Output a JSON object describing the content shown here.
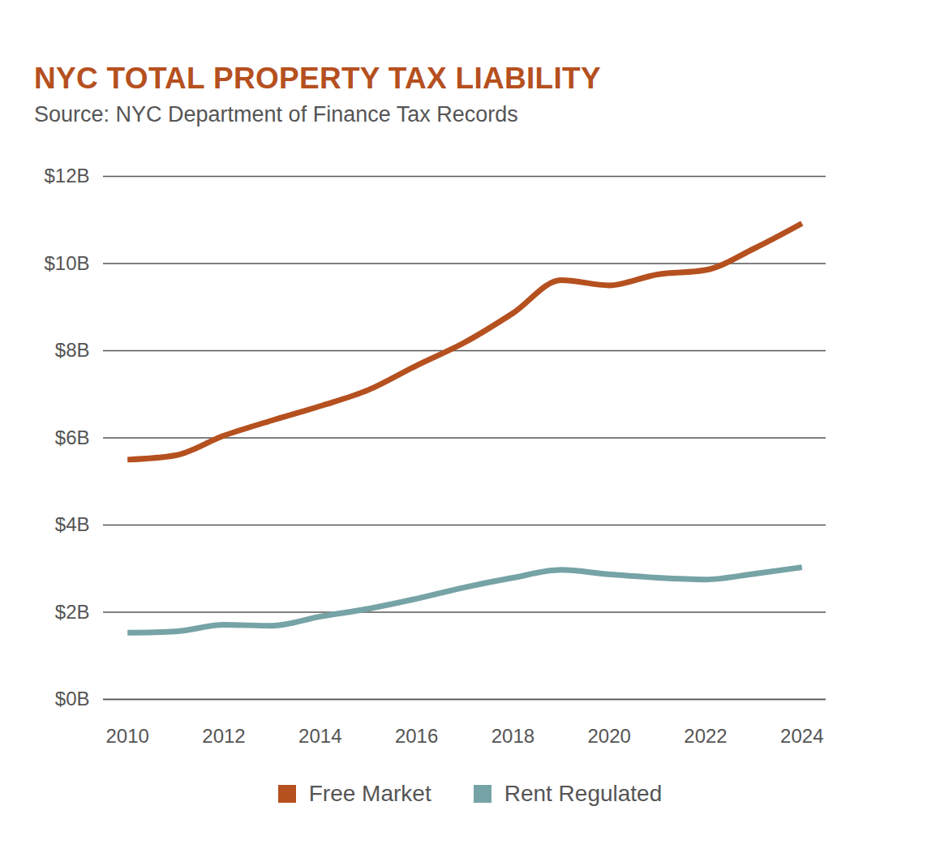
{
  "chart_data": {
    "type": "line",
    "title": "NYC TOTAL PROPERTY TAX LIABILITY",
    "subtitle": "Source: NYC Department of Finance Tax Records",
    "x": [
      2010,
      2011,
      2012,
      2013,
      2014,
      2015,
      2016,
      2017,
      2018,
      2019,
      2020,
      2021,
      2022,
      2023,
      2024
    ],
    "series": [
      {
        "name": "Free Market",
        "color": "#b5501f",
        "values": [
          5.5,
          5.6,
          6.05,
          6.4,
          6.73,
          7.1,
          7.66,
          8.19,
          8.86,
          9.62,
          9.5,
          9.75,
          9.85,
          10.34,
          10.92
        ]
      },
      {
        "name": "Rent Regulated",
        "color": "#76a3a6",
        "values": [
          1.53,
          1.56,
          1.71,
          1.69,
          1.9,
          2.08,
          2.31,
          2.57,
          2.79,
          2.97,
          2.87,
          2.79,
          2.75,
          2.88,
          3.03
        ]
      }
    ],
    "xlim": [
      2009.5,
      2024.5
    ],
    "xticks": [
      2010,
      2012,
      2014,
      2016,
      2018,
      2020,
      2022,
      2024
    ],
    "ylim": [
      0,
      12
    ],
    "yticks": [
      {
        "value": 0,
        "label": "$0B"
      },
      {
        "value": 2,
        "label": "$2B"
      },
      {
        "value": 4,
        "label": "$4B"
      },
      {
        "value": 6,
        "label": "$6B"
      },
      {
        "value": 8,
        "label": "$8B"
      },
      {
        "value": 10,
        "label": "$10B"
      },
      {
        "value": 12,
        "label": "$12B"
      }
    ],
    "grid": true,
    "legend": "bottom"
  }
}
